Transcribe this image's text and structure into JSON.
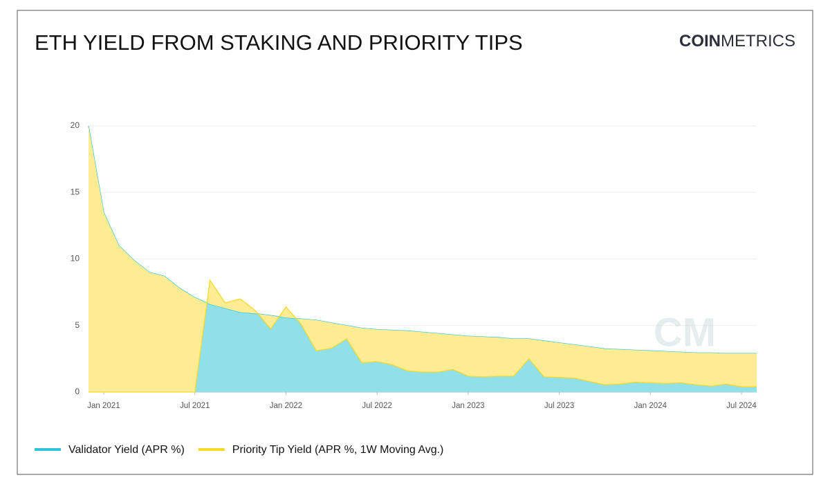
{
  "chart_data": {
    "type": "stacked-area",
    "title": "ETH YIELD FROM STAKING AND PRIORITY TIPS",
    "logo": {
      "bold": "COIN",
      "light": "METRICS"
    },
    "watermark": "CM",
    "x": [
      "2020-12",
      "2021-01",
      "2021-02",
      "2021-03",
      "2021-04",
      "2021-05",
      "2021-06",
      "2021-07",
      "2021-08",
      "2021-09",
      "2021-10",
      "2021-11",
      "2021-12",
      "2022-01",
      "2022-02",
      "2022-03",
      "2022-04",
      "2022-05",
      "2022-06",
      "2022-07",
      "2022-08",
      "2022-09",
      "2022-10",
      "2022-11",
      "2022-12",
      "2023-01",
      "2023-02",
      "2023-03",
      "2023-04",
      "2023-05",
      "2023-06",
      "2023-07",
      "2023-08",
      "2023-09",
      "2023-10",
      "2023-11",
      "2023-12",
      "2024-01",
      "2024-02",
      "2024-03",
      "2024-04",
      "2024-05",
      "2024-06",
      "2024-07",
      "2024-08"
    ],
    "xlim": [
      "2020-12",
      "2024-08"
    ],
    "xticks": [
      {
        "value": "2021-01",
        "label": "Jan 2021"
      },
      {
        "value": "2021-07",
        "label": "Jul 2021"
      },
      {
        "value": "2022-01",
        "label": "Jan 2022"
      },
      {
        "value": "2022-07",
        "label": "Jul 2022"
      },
      {
        "value": "2023-01",
        "label": "Jan 2023"
      },
      {
        "value": "2023-07",
        "label": "Jul 2023"
      },
      {
        "value": "2024-01",
        "label": "Jan 2024"
      },
      {
        "value": "2024-07",
        "label": "Jul 2024"
      }
    ],
    "ylim": [
      0,
      22
    ],
    "yticks": [
      0,
      5,
      10,
      15,
      20
    ],
    "grid": true,
    "legend": "bottom-left",
    "series": [
      {
        "name": "Validator Yield (APR %)",
        "color": "#2ec5d8",
        "fill": "#90e0ea",
        "values": [
          20,
          13.5,
          11,
          9.9,
          9.0,
          8.7,
          7.8,
          7.1,
          6.6,
          6.3,
          6.0,
          5.9,
          5.75,
          5.6,
          5.5,
          5.4,
          5.2,
          5.0,
          4.8,
          4.7,
          4.65,
          4.6,
          4.5,
          4.4,
          4.3,
          4.2,
          4.15,
          4.1,
          4.0,
          4.0,
          3.85,
          3.7,
          3.55,
          3.4,
          3.25,
          3.2,
          3.15,
          3.1,
          3.05,
          3.0,
          2.95,
          2.95,
          2.9,
          2.9,
          2.9
        ]
      },
      {
        "name": "Priority Tip Yield (APR %, 1W Moving Avg.)",
        "color": "#f8d92a",
        "fill": "#fdec94",
        "values": [
          0,
          0,
          0,
          0,
          0,
          0,
          0,
          0,
          8.4,
          6.7,
          7.0,
          6.1,
          4.75,
          6.4,
          5.1,
          3.1,
          3.3,
          4.0,
          2.2,
          2.3,
          2.05,
          1.6,
          1.5,
          1.5,
          1.7,
          1.2,
          1.15,
          1.2,
          1.2,
          2.5,
          1.15,
          1.1,
          1.05,
          0.8,
          0.55,
          0.6,
          0.75,
          0.7,
          0.65,
          0.7,
          0.55,
          0.45,
          0.6,
          0.4,
          0.4
        ]
      }
    ]
  }
}
